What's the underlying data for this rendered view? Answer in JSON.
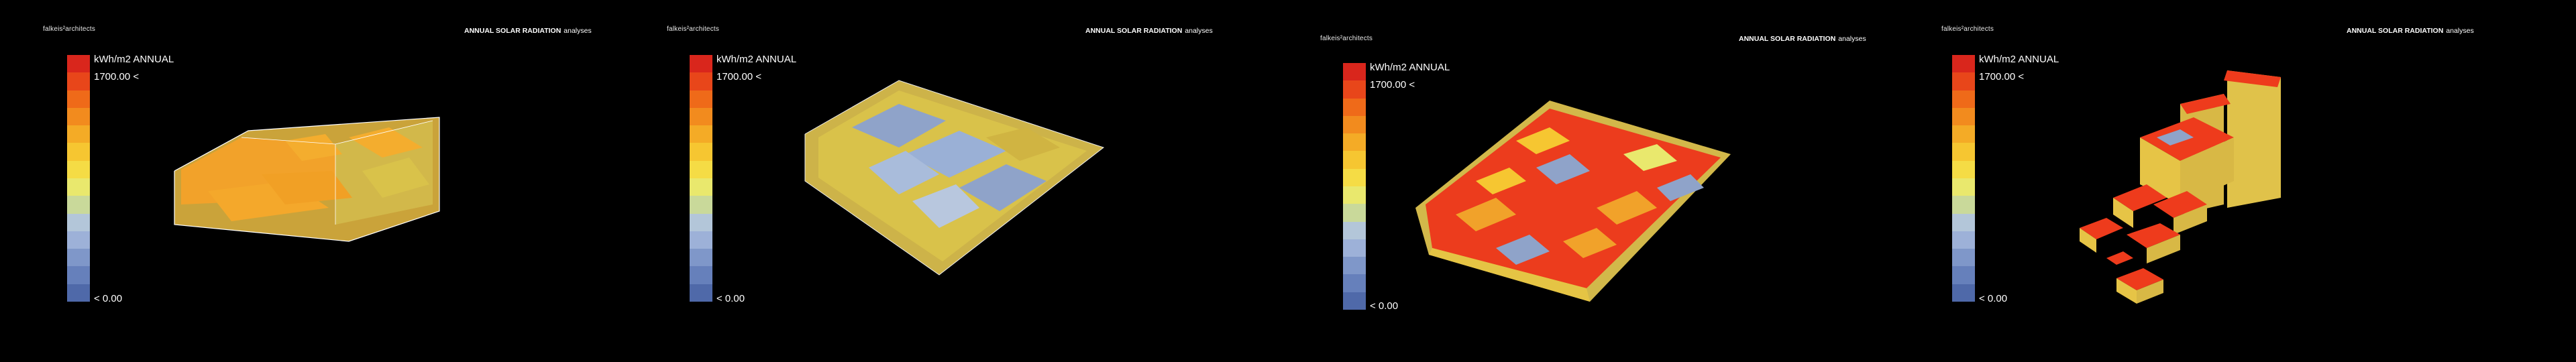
{
  "panels": [
    {
      "brand": "falkeis²architects",
      "title_bold": "ANNUAL SOLAR RADIATION",
      "title_sub": "analyses",
      "legend": {
        "unit": "kWh/m2 ANNUAL",
        "max": "1700.00 <",
        "min": "< 0.00"
      }
    },
    {
      "brand": "falkeis²architects",
      "title_bold": "ANNUAL SOLAR RADIATION",
      "title_sub": "analyses",
      "legend": {
        "unit": "kWh/m2 ANNUAL",
        "max": "1700.00 <",
        "min": "< 0.00"
      }
    },
    {
      "brand": "falkeis²architects",
      "title_bold": "ANNUAL SOLAR RADIATION",
      "title_sub": "analyses",
      "legend": {
        "unit": "kWh/m2 ANNUAL",
        "max": "1700.00 <",
        "min": "< 0.00"
      }
    },
    {
      "brand": "falkeis²architects",
      "title_bold": "ANNUAL SOLAR RADIATION",
      "title_sub": "analyses",
      "legend": {
        "unit": "kWh/m2 ANNUAL",
        "max": "1700.00 <",
        "min": "< 0.00"
      }
    }
  ],
  "legend_colors": [
    "#d9261c",
    "#e8461a",
    "#ef6a19",
    "#f28b1e",
    "#f4ab26",
    "#f6c631",
    "#f5dc45",
    "#e9e86d",
    "#c9d99a",
    "#b3c6d9",
    "#9db1d8",
    "#7f97c9",
    "#6680bb",
    "#4f69a9"
  ],
  "model_colors": {
    "orange": "#f3a52a",
    "yellow": "#d9c24a",
    "red": "#ee3b1c",
    "blue": "#8fa3c9",
    "shade": "#c9a63a",
    "outline": "#ffffff"
  }
}
